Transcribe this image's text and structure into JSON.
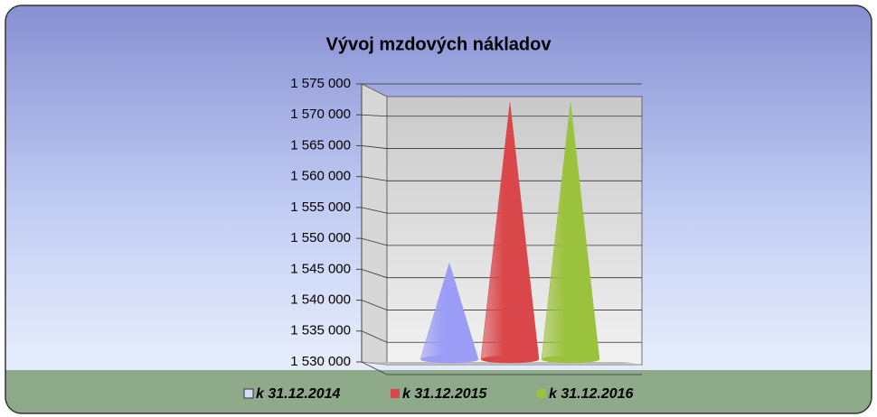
{
  "chart_data": {
    "type": "cone",
    "title": "Vývoj mzdových nákladov",
    "categories": [
      null
    ],
    "series": [
      {
        "name": "k 31.12.2014",
        "color": "#9a9cf5",
        "values": [
          1546000
        ]
      },
      {
        "name": "k 31.12.2015",
        "color": "#d9474a",
        "values": [
          1572000
        ]
      },
      {
        "name": "k 31.12.2016",
        "color": "#9bc23c",
        "values": [
          1572000
        ]
      }
    ],
    "ylim": [
      1530000,
      1575000
    ],
    "yticks": [
      {
        "value": 1530000,
        "label": "1 530 000"
      },
      {
        "value": 1535000,
        "label": "1 535 000"
      },
      {
        "value": 1540000,
        "label": "1 540 000"
      },
      {
        "value": 1545000,
        "label": "1 545 000"
      },
      {
        "value": 1550000,
        "label": "1 550 000"
      },
      {
        "value": 1555000,
        "label": "1 555 000"
      },
      {
        "value": 1560000,
        "label": "1 560 000"
      },
      {
        "value": 1565000,
        "label": "1 565 000"
      },
      {
        "value": 1570000,
        "label": "1 570 000"
      },
      {
        "value": 1575000,
        "label": "1 575 000"
      }
    ],
    "grid": true,
    "legend": "bottom"
  }
}
